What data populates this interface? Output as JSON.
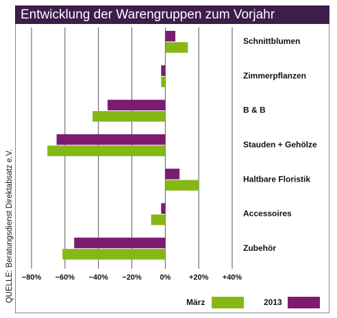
{
  "chart_data": {
    "type": "bar",
    "orientation": "horizontal",
    "title": "Entwicklung der Warengruppen zum Vorjahr",
    "source": "QUELLE: Beratungsdienst Direktabsatz e.V.",
    "categories": [
      "Schnittblumen",
      "Zimmerpflanzen",
      "B & B",
      "Stauden + Gehölze",
      "Haltbare Floristik",
      "Accessoires",
      "Zubehör"
    ],
    "series": [
      {
        "name": "2013",
        "color": "#7b1c70",
        "values": [
          6,
          -2.5,
          -34.5,
          -65,
          8.5,
          -2.5,
          -54.5
        ]
      },
      {
        "name": "März",
        "color": "#85b817",
        "values": [
          13.5,
          -2.5,
          -43.5,
          -70.5,
          20,
          -8.5,
          -61.5
        ]
      }
    ],
    "xlim": [
      -80,
      40
    ],
    "xticks": [
      {
        "value": -80,
        "label": "−80%"
      },
      {
        "value": -60,
        "label": "−60%"
      },
      {
        "value": -40,
        "label": "−40%"
      },
      {
        "value": -20,
        "label": "−20%"
      },
      {
        "value": 0,
        "label": "0%"
      },
      {
        "value": 20,
        "label": "+20%"
      },
      {
        "value": 40,
        "label": "+40%"
      }
    ],
    "grid": true
  }
}
